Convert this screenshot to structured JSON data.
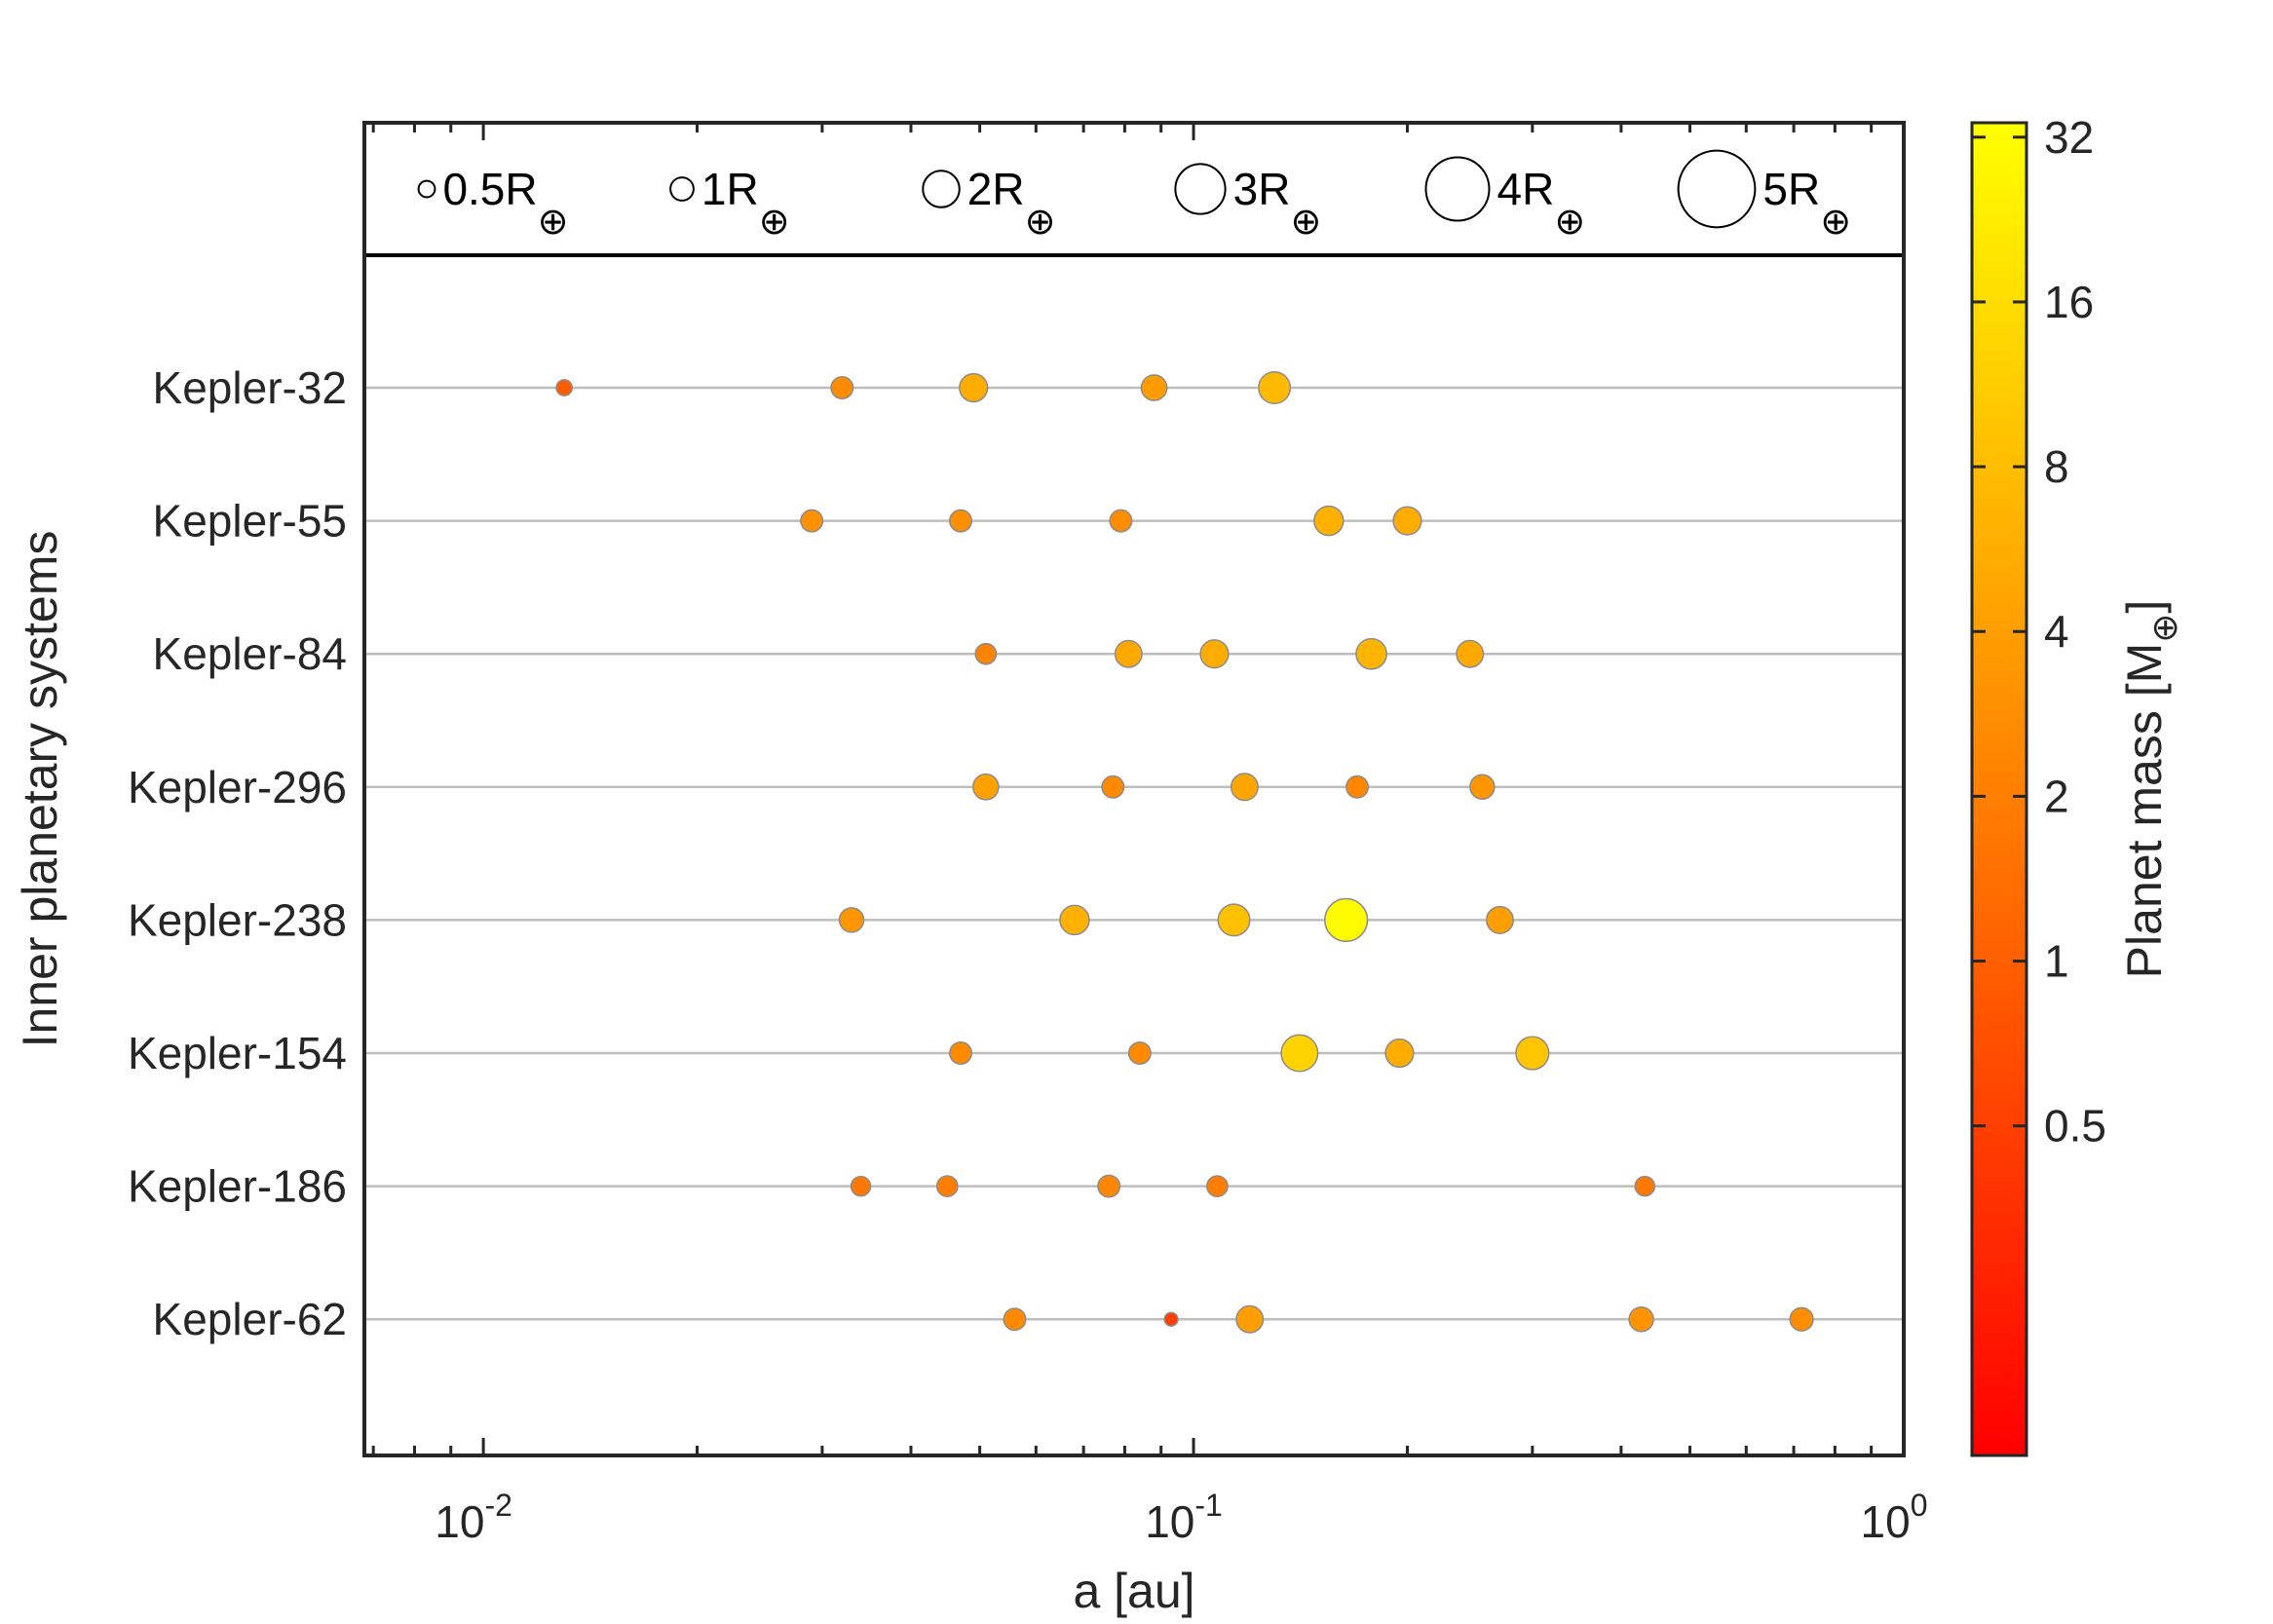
{
  "chart_data": {
    "type": "scatter",
    "xscale": "log",
    "xlim": [
      0.0068,
      1.0
    ],
    "xlabel": "a [au]",
    "ylabel": "Inner planetary systems",
    "x_ticks": [
      {
        "value": 0.01,
        "base": "10",
        "exp": "-2"
      },
      {
        "value": 0.1,
        "base": "10",
        "exp": "-1"
      },
      {
        "value": 1.0,
        "base": "10",
        "exp": "0"
      }
    ],
    "grid": "horizontal",
    "size_legend": [
      {
        "radius_rearth": 0.5,
        "label": "0.5R",
        "sub": "⊕"
      },
      {
        "radius_rearth": 1,
        "label": "1R",
        "sub": "⊕"
      },
      {
        "radius_rearth": 2,
        "label": "2R",
        "sub": "⊕"
      },
      {
        "radius_rearth": 3,
        "label": "3R",
        "sub": "⊕"
      },
      {
        "radius_rearth": 4,
        "label": "4R",
        "sub": "⊕"
      },
      {
        "radius_rearth": 5,
        "label": "5R",
        "sub": "⊕"
      }
    ],
    "colorbar": {
      "label": "Planet mass [M",
      "label_sub": "⊕",
      "label_end": "]",
      "scale": "log2",
      "range": [
        0.125,
        34
      ],
      "ticks": [
        {
          "value": 0.5,
          "label": "0.5"
        },
        {
          "value": 1,
          "label": "1"
        },
        {
          "value": 2,
          "label": "2"
        },
        {
          "value": 4,
          "label": "4"
        },
        {
          "value": 8,
          "label": "8"
        },
        {
          "value": 16,
          "label": "16"
        },
        {
          "value": 32,
          "label": "32"
        }
      ]
    },
    "systems": [
      {
        "name": "Kepler-32",
        "planets": [
          {
            "a": 0.013,
            "r": 0.65,
            "m": 0.95
          },
          {
            "a": 0.032,
            "r": 0.9,
            "m": 2.7
          },
          {
            "a": 0.049,
            "r": 1.15,
            "m": 5.5
          },
          {
            "a": 0.088,
            "r": 1.05,
            "m": 3.9
          },
          {
            "a": 0.13,
            "r": 1.3,
            "m": 7.5
          }
        ]
      },
      {
        "name": "Kepler-55",
        "planets": [
          {
            "a": 0.029,
            "r": 0.9,
            "m": 3.0
          },
          {
            "a": 0.047,
            "r": 0.9,
            "m": 2.8
          },
          {
            "a": 0.079,
            "r": 0.9,
            "m": 2.8
          },
          {
            "a": 0.155,
            "r": 1.2,
            "m": 6.0
          },
          {
            "a": 0.2,
            "r": 1.15,
            "m": 5.5
          }
        ]
      },
      {
        "name": "Kepler-84",
        "planets": [
          {
            "a": 0.051,
            "r": 0.85,
            "m": 2.2
          },
          {
            "a": 0.081,
            "r": 1.1,
            "m": 5.0
          },
          {
            "a": 0.107,
            "r": 1.15,
            "m": 5.5
          },
          {
            "a": 0.178,
            "r": 1.25,
            "m": 6.5
          },
          {
            "a": 0.245,
            "r": 1.1,
            "m": 5.0
          }
        ]
      },
      {
        "name": "Kepler-296",
        "planets": [
          {
            "a": 0.051,
            "r": 1.05,
            "m": 4.3
          },
          {
            "a": 0.077,
            "r": 0.9,
            "m": 2.6
          },
          {
            "a": 0.118,
            "r": 1.1,
            "m": 4.8
          },
          {
            "a": 0.17,
            "r": 0.9,
            "m": 2.4
          },
          {
            "a": 0.255,
            "r": 1.0,
            "m": 3.3
          }
        ]
      },
      {
        "name": "Kepler-238",
        "planets": [
          {
            "a": 0.033,
            "r": 1.0,
            "m": 3.3
          },
          {
            "a": 0.068,
            "r": 1.2,
            "m": 6.0
          },
          {
            "a": 0.114,
            "r": 1.3,
            "m": 8.5
          },
          {
            "a": 0.164,
            "r": 1.75,
            "m": 32
          },
          {
            "a": 0.27,
            "r": 1.1,
            "m": 4.0
          }
        ]
      },
      {
        "name": "Kepler-154",
        "planets": [
          {
            "a": 0.047,
            "r": 0.9,
            "m": 2.6
          },
          {
            "a": 0.084,
            "r": 0.9,
            "m": 2.6
          },
          {
            "a": 0.141,
            "r": 1.5,
            "m": 13
          },
          {
            "a": 0.195,
            "r": 1.15,
            "m": 5.5
          },
          {
            "a": 0.3,
            "r": 1.35,
            "m": 9.5
          }
        ]
      },
      {
        "name": "Kepler-186",
        "planets": [
          {
            "a": 0.034,
            "r": 0.8,
            "m": 1.8
          },
          {
            "a": 0.045,
            "r": 0.85,
            "m": 2.0
          },
          {
            "a": 0.076,
            "r": 0.9,
            "m": 2.4
          },
          {
            "a": 0.108,
            "r": 0.85,
            "m": 2.0
          },
          {
            "a": 0.432,
            "r": 0.8,
            "m": 1.8
          }
        ]
      },
      {
        "name": "Kepler-62",
        "planets": [
          {
            "a": 0.056,
            "r": 0.9,
            "m": 2.6
          },
          {
            "a": 0.093,
            "r": 0.55,
            "m": 0.5
          },
          {
            "a": 0.12,
            "r": 1.1,
            "m": 4.0
          },
          {
            "a": 0.427,
            "r": 1.0,
            "m": 3.2
          },
          {
            "a": 0.718,
            "r": 0.95,
            "m": 2.8
          }
        ]
      }
    ]
  }
}
